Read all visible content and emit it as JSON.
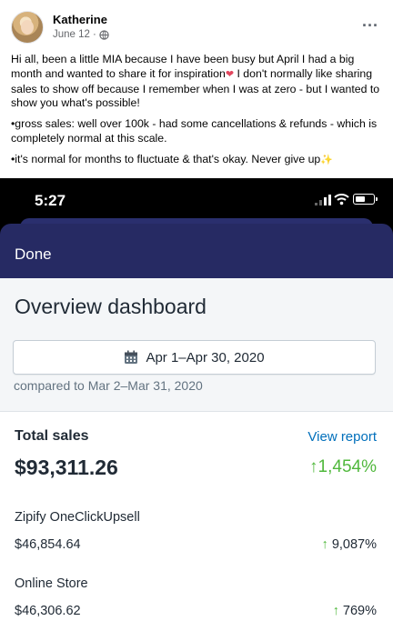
{
  "post": {
    "author": "Katherine",
    "date": "June 12",
    "more_label": "...",
    "paragraphs": [
      "Hi all, been a little MIA because I have been busy but April I had a big month and wanted to share it for inspiration",
      " I don't normally like sharing sales to show off because I remember when I was at zero - but I wanted to show you what's possible!"
    ],
    "bullet_1": "•gross sales: well over 100k - had some cancellations & refunds - which is completely normal at this scale.",
    "bullet_2": "•it's normal for months to fluctuate & that's okay. Never give up"
  },
  "phone": {
    "time": "5:27",
    "nav_done": "Done",
    "title": "Overview dashboard",
    "date_range": "Apr 1–Apr 30, 2020",
    "compared": "compared to Mar 2–Mar 31, 2020",
    "total_sales": {
      "label": "Total sales",
      "view_report": "View report",
      "value": "$93,311.26",
      "change": "1,454%"
    },
    "rows": [
      {
        "label": "Zipify OneClickUpsell",
        "value": "$46,854.64",
        "change": "9,087%"
      },
      {
        "label": "Online Store",
        "value": "$46,306.62",
        "change": "769%"
      }
    ]
  },
  "colors": {
    "nav": "#262a63",
    "link": "#006fbb",
    "positive": "#50b83c"
  }
}
